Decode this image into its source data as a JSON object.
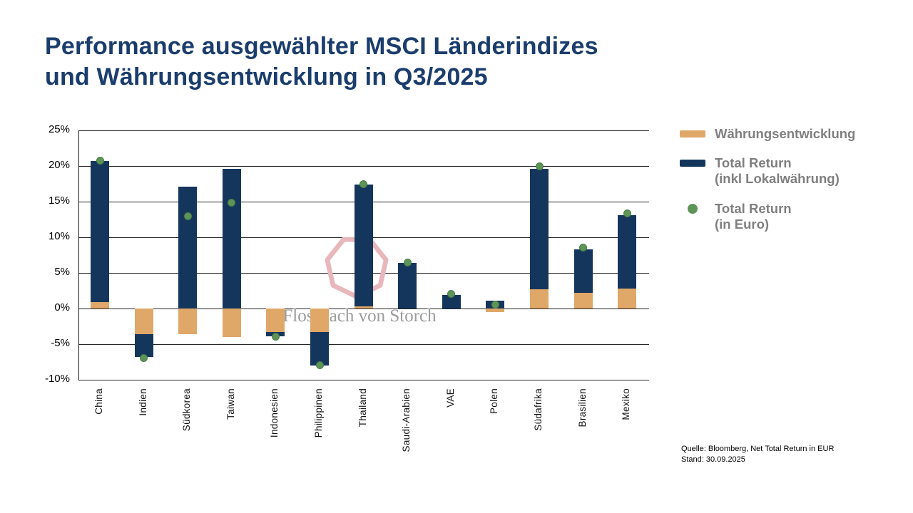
{
  "title": {
    "line1": "Performance ausgewählter MSCI Länderindizes",
    "line2": "und Währungsentwicklung in Q3/2025"
  },
  "legend": {
    "items": [
      {
        "label": "Währungsentwicklung"
      },
      {
        "label": "Total Return",
        "label2": "(inkl Lokalwährung)"
      },
      {
        "label": "Total Return",
        "label2": "(in Euro)"
      }
    ]
  },
  "watermark": {
    "text": "Flossbach von Storch"
  },
  "source": {
    "line1": "Quelle: Bloomberg, Net Total Return in EUR",
    "line2": "Stand: 30.09.2025"
  },
  "colors": {
    "navy": "#14365c",
    "tan": "#dfa768",
    "green": "#5d9457",
    "title_blue": "#1b3d6d",
    "legend_gray": "#7f7f7f",
    "watermark_pink": "#e8b7bb"
  },
  "chart_data": {
    "type": "bar",
    "stacked": true,
    "title": "Performance ausgewählter MSCI Länderindizes und Währungsentwicklung in Q3/2025",
    "categories": [
      "China",
      "Indien",
      "Südkorea",
      "Taiwan",
      "Indonesien",
      "Philippinen",
      "Thailand",
      "Saudi-Arabien",
      "VAE",
      "Polen",
      "Südafrika",
      "Brasilien",
      "Mexiko"
    ],
    "series": [
      {
        "name": "Währungsentwicklung",
        "type": "bar",
        "color": "#dfa768",
        "values": [
          0.9,
          -3.6,
          -3.6,
          -4.0,
          -3.3,
          -3.3,
          0.3,
          0.0,
          0.0,
          -0.5,
          2.7,
          2.2,
          2.8
        ]
      },
      {
        "name": "Total Return (inkl Lokalwährung)",
        "type": "bar",
        "color": "#14365c",
        "values": [
          19.8,
          -3.2,
          17.1,
          19.6,
          -0.6,
          -4.7,
          17.1,
          6.4,
          1.9,
          1.1,
          16.9,
          6.1,
          10.3
        ]
      },
      {
        "name": "Total Return (in Euro)",
        "type": "scatter",
        "color": "#5d9457",
        "values": [
          20.8,
          -6.9,
          13.0,
          14.9,
          -3.9,
          -7.9,
          17.5,
          6.5,
          2.1,
          0.6,
          20.0,
          8.6,
          13.4
        ]
      }
    ],
    "xlabel": "",
    "ylabel": "",
    "ylim": [
      -10,
      25
    ],
    "yticks": [
      25,
      20,
      15,
      10,
      5,
      0,
      -5,
      -10
    ],
    "ytick_suffix": "%",
    "grid": true,
    "legend_position": "right"
  }
}
